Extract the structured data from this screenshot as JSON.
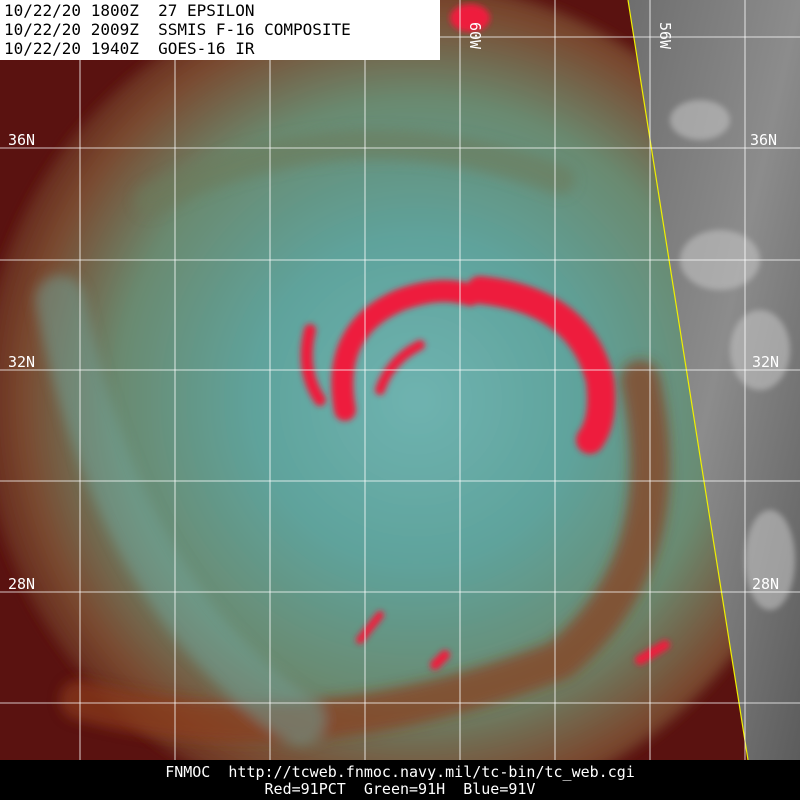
{
  "header": {
    "lines": [
      "10/22/20 1800Z  27 EPSILON",
      "10/22/20 2009Z  SSMIS F-16 COMPOSITE",
      "10/22/20 1940Z  GOES-16 IR"
    ]
  },
  "grid": {
    "lat_labels": [
      "36N",
      "32N",
      "28N"
    ],
    "lon_labels": [
      "60W",
      "56W"
    ]
  },
  "footer": {
    "source": "FNMOC  http://tcweb.fnmoc.navy.mil/tc-bin/tc_web.cgi",
    "channels": "Red=91PCT  Green=91H  Blue=91V"
  }
}
